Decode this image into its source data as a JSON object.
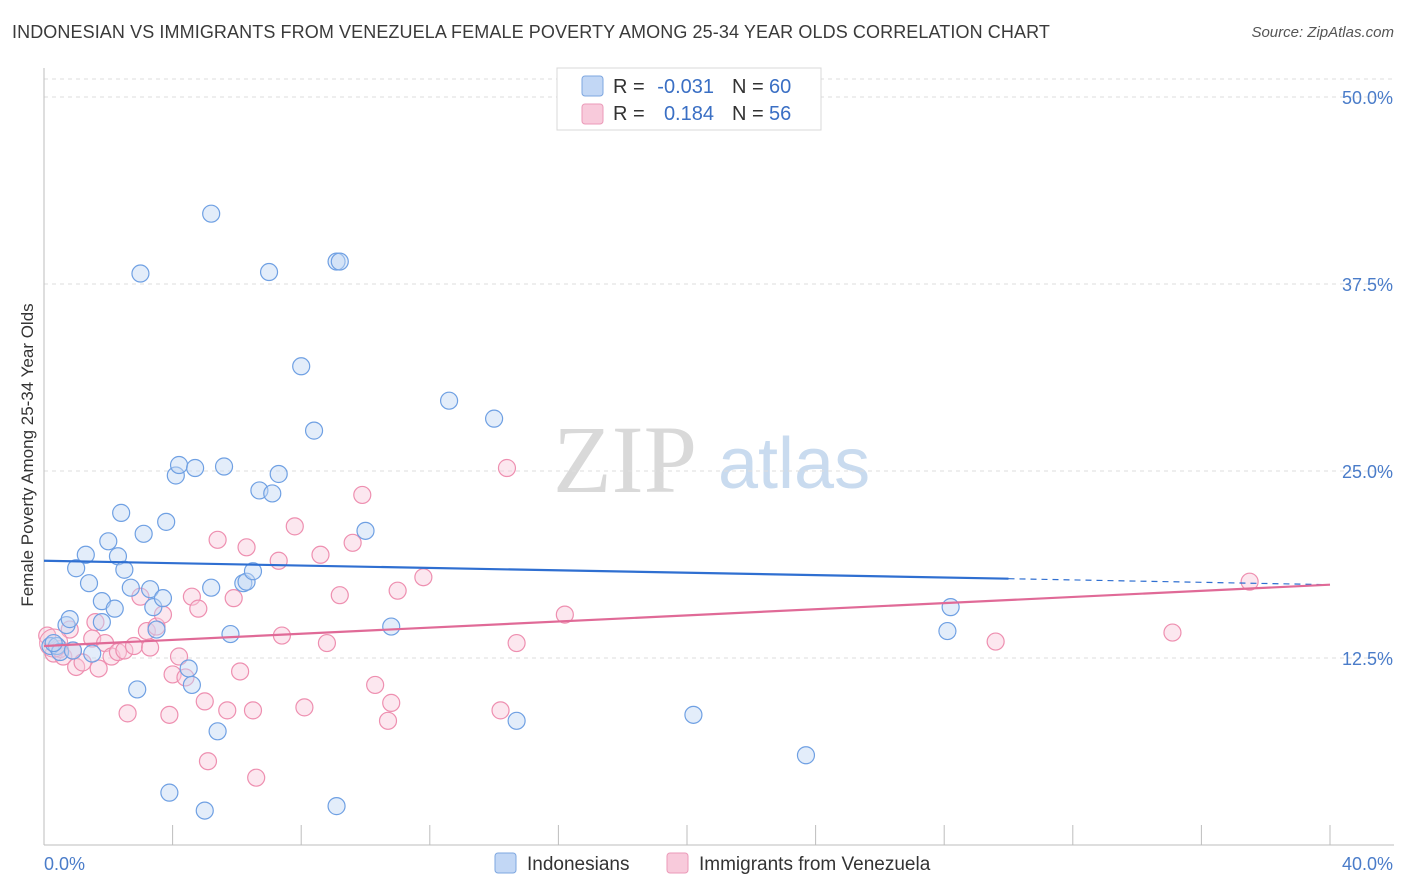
{
  "title": "INDONESIAN VS IMMIGRANTS FROM VENEZUELA FEMALE POVERTY AMONG 25-34 YEAR OLDS CORRELATION CHART",
  "source": "Source: ZipAtlas.com",
  "watermark": {
    "zip": "ZIP",
    "atlas": "atlas"
  },
  "legend": {
    "rows": [
      {
        "r_label": "R =",
        "r_value": "-0.031",
        "n_label": "N =",
        "n_value": "60"
      },
      {
        "r_label": "R =",
        "r_value": "0.184",
        "n_label": "N =",
        "n_value": "56"
      }
    ]
  },
  "chart_data": {
    "type": "scatter",
    "title": "INDONESIAN VS IMMIGRANTS FROM VENEZUELA FEMALE POVERTY AMONG 25-34 YEAR OLDS CORRELATION CHART",
    "xlabel": "",
    "ylabel": "Female Poverty Among 25-34 Year Olds",
    "xlim": [
      0,
      40
    ],
    "ylim": [
      0,
      50
    ],
    "x_tick_labels": [
      "0.0%",
      "40.0%"
    ],
    "y_ticks": [
      12.5,
      25.0,
      37.5,
      50.0
    ],
    "y_tick_labels": [
      "12.5%",
      "25.0%",
      "37.5%",
      "50.0%"
    ],
    "grid": true,
    "colors": {
      "indonesians": "#6fa0e3",
      "venezuela": "#ee8fb0",
      "line_blue": "#2f6fd1",
      "line_pink": "#e06a97"
    },
    "series": [
      {
        "name": "Indonesians",
        "trend": {
          "x0": 0,
          "y0": 19.0,
          "x1": 30,
          "y1": 17.8,
          "dash_x1": 40,
          "dash_y1": 17.4
        },
        "points": [
          [
            0.2,
            13.3
          ],
          [
            0.4,
            13.3
          ],
          [
            0.5,
            12.9
          ],
          [
            0.7,
            14.7
          ],
          [
            0.8,
            15.1
          ],
          [
            0.9,
            13.0
          ],
          [
            1.0,
            18.5
          ],
          [
            1.3,
            19.4
          ],
          [
            1.4,
            17.5
          ],
          [
            1.5,
            12.8
          ],
          [
            1.8,
            14.9
          ],
          [
            1.8,
            16.3
          ],
          [
            2.0,
            20.3
          ],
          [
            2.2,
            15.8
          ],
          [
            2.3,
            19.3
          ],
          [
            2.4,
            22.2
          ],
          [
            2.5,
            18.4
          ],
          [
            2.7,
            17.2
          ],
          [
            2.9,
            10.4
          ],
          [
            3.1,
            20.8
          ],
          [
            3.3,
            17.1
          ],
          [
            3.4,
            15.9
          ],
          [
            3.5,
            14.4
          ],
          [
            3.7,
            16.5
          ],
          [
            3.8,
            21.6
          ],
          [
            4.1,
            24.7
          ],
          [
            4.2,
            25.4
          ],
          [
            4.5,
            11.8
          ],
          [
            4.6,
            10.7
          ],
          [
            4.7,
            25.2
          ],
          [
            5.0,
            2.3
          ],
          [
            5.2,
            17.2
          ],
          [
            5.4,
            7.6
          ],
          [
            5.6,
            25.3
          ],
          [
            5.8,
            14.1
          ],
          [
            6.2,
            17.5
          ],
          [
            6.3,
            17.6
          ],
          [
            6.5,
            18.3
          ],
          [
            6.7,
            23.7
          ],
          [
            7.1,
            23.5
          ],
          [
            7.3,
            24.8
          ],
          [
            8.0,
            32.0
          ],
          [
            8.4,
            27.7
          ],
          [
            9.1,
            39.0
          ],
          [
            9.1,
            2.6
          ],
          [
            9.2,
            39.0
          ],
          [
            10.0,
            21.0
          ],
          [
            10.8,
            14.6
          ],
          [
            12.6,
            29.7
          ],
          [
            14.0,
            28.5
          ],
          [
            14.7,
            8.3
          ],
          [
            20.2,
            8.7
          ],
          [
            23.7,
            6.0
          ],
          [
            28.1,
            14.3
          ],
          [
            28.2,
            15.9
          ],
          [
            3.0,
            38.2
          ],
          [
            5.2,
            42.2
          ],
          [
            7.0,
            38.3
          ],
          [
            0.3,
            13.5
          ],
          [
            3.9,
            3.5
          ]
        ]
      },
      {
        "name": "Immigrants from Venezuela",
        "trend": {
          "x0": 0,
          "y0": 13.3,
          "x1": 40,
          "y1": 17.4
        },
        "points": [
          [
            0.1,
            14.0
          ],
          [
            0.3,
            12.8
          ],
          [
            0.5,
            13.1
          ],
          [
            0.6,
            12.6
          ],
          [
            0.8,
            14.4
          ],
          [
            0.9,
            13.0
          ],
          [
            1.0,
            11.9
          ],
          [
            1.2,
            12.2
          ],
          [
            1.5,
            13.8
          ],
          [
            1.6,
            14.9
          ],
          [
            1.7,
            11.8
          ],
          [
            1.9,
            13.5
          ],
          [
            2.1,
            12.6
          ],
          [
            2.3,
            12.9
          ],
          [
            2.5,
            13.0
          ],
          [
            2.6,
            8.8
          ],
          [
            2.8,
            13.3
          ],
          [
            3.0,
            16.6
          ],
          [
            3.2,
            14.3
          ],
          [
            3.3,
            13.2
          ],
          [
            3.5,
            14.6
          ],
          [
            3.7,
            15.4
          ],
          [
            3.9,
            8.7
          ],
          [
            4.0,
            11.4
          ],
          [
            4.2,
            12.6
          ],
          [
            4.4,
            11.2
          ],
          [
            4.6,
            16.6
          ],
          [
            4.8,
            15.8
          ],
          [
            5.0,
            9.6
          ],
          [
            5.1,
            5.6
          ],
          [
            5.4,
            20.4
          ],
          [
            5.7,
            9.0
          ],
          [
            5.9,
            16.5
          ],
          [
            6.1,
            11.6
          ],
          [
            6.3,
            19.9
          ],
          [
            6.5,
            9.0
          ],
          [
            6.6,
            4.5
          ],
          [
            7.3,
            19.0
          ],
          [
            7.4,
            14.0
          ],
          [
            7.8,
            21.3
          ],
          [
            8.1,
            9.2
          ],
          [
            8.6,
            19.4
          ],
          [
            8.8,
            13.5
          ],
          [
            9.2,
            16.7
          ],
          [
            9.6,
            20.2
          ],
          [
            9.9,
            23.4
          ],
          [
            10.3,
            10.7
          ],
          [
            10.7,
            8.3
          ],
          [
            10.8,
            9.5
          ],
          [
            11.0,
            17.0
          ],
          [
            11.8,
            17.9
          ],
          [
            14.2,
            9.0
          ],
          [
            14.4,
            25.2
          ],
          [
            14.7,
            13.5
          ],
          [
            16.2,
            15.4
          ],
          [
            29.6,
            13.6
          ]
        ],
        "extra_points": [
          [
            35.1,
            14.2
          ],
          [
            37.5,
            17.6
          ]
        ]
      }
    ]
  },
  "bottom_legend": [
    {
      "label": "Indonesians"
    },
    {
      "label": "Immigrants from Venezuela"
    }
  ]
}
